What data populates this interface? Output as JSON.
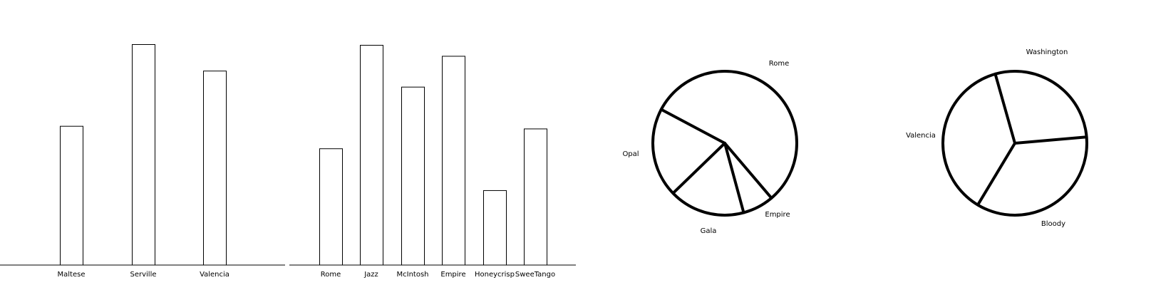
{
  "chart_data": [
    {
      "type": "bar",
      "categories": [
        "Maltese",
        "Serville",
        "Valencia"
      ],
      "values": [
        63,
        100,
        88
      ]
    },
    {
      "type": "bar",
      "categories": [
        "Rome",
        "Jazz",
        "McIntosh",
        "Empire",
        "Honeycrisp",
        "SweeTango"
      ],
      "values": [
        53,
        100,
        81,
        95,
        34,
        62
      ]
    },
    {
      "type": "pie",
      "labels": [
        "Rome",
        "Empire",
        "Gala",
        "Opal"
      ],
      "values": [
        56,
        7,
        17,
        20
      ]
    },
    {
      "type": "pie",
      "labels": [
        "Washington",
        "Bloody",
        "Valencia"
      ],
      "values": [
        35,
        37,
        28
      ]
    }
  ]
}
